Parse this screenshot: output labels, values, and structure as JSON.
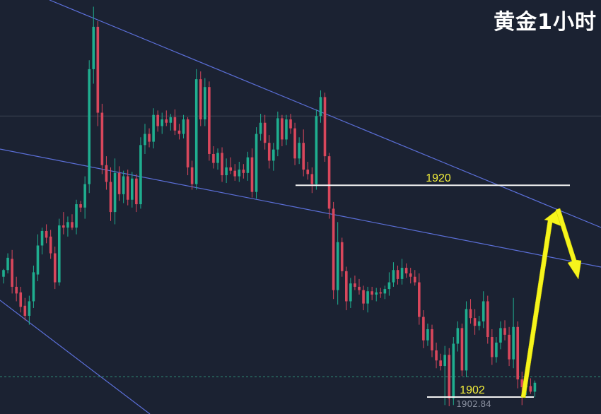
{
  "title": "黄金1小时",
  "colors": {
    "background": "#1b2232",
    "bull": "#1fae8f",
    "bear": "#d9475c",
    "trendline": "#5b6fd8",
    "level_line": "#f2f2f2",
    "level_label": "#f4ef3a",
    "arrow": "#f6f41c",
    "title": "#ffffff",
    "price_line": "#2f8f78",
    "price_label": "#8a90a0",
    "hline": "#3a4150"
  },
  "chart_data": {
    "type": "candlestick",
    "title": "黄金1小时",
    "y_min": 1899.5,
    "y_max": 1936.6,
    "candles": [
      [
        1911.8,
        1912.5,
        1911.2,
        1912.4
      ],
      [
        1912.4,
        1913.9,
        1912.1,
        1913.5
      ],
      [
        1913.4,
        1914.2,
        1910.3,
        1910.9
      ],
      [
        1910.9,
        1911.8,
        1909.6,
        1910.3
      ],
      [
        1910.4,
        1910.9,
        1908.6,
        1909.1
      ],
      [
        1909.2,
        1909.9,
        1907.9,
        1908.3
      ],
      [
        1908.3,
        1910.1,
        1907.5,
        1909.6
      ],
      [
        1909.6,
        1912.8,
        1909.0,
        1912.2
      ],
      [
        1912.0,
        1915.6,
        1911.4,
        1914.6
      ],
      [
        1914.6,
        1916.2,
        1913.8,
        1915.9
      ],
      [
        1915.9,
        1916.5,
        1914.8,
        1915.3
      ],
      [
        1915.4,
        1916.0,
        1913.4,
        1913.9
      ],
      [
        1913.9,
        1914.5,
        1910.7,
        1911.3
      ],
      [
        1911.3,
        1917.0,
        1911.0,
        1916.4
      ],
      [
        1916.4,
        1917.6,
        1915.6,
        1916.2
      ],
      [
        1916.2,
        1917.2,
        1915.4,
        1916.7
      ],
      [
        1916.7,
        1917.4,
        1916.0,
        1916.2
      ],
      [
        1916.2,
        1918.7,
        1915.6,
        1918.3
      ],
      [
        1918.3,
        1918.6,
        1917.6,
        1918.0
      ],
      [
        1918.0,
        1920.8,
        1917.0,
        1920.1
      ],
      [
        1920.1,
        1931.2,
        1919.3,
        1930.4
      ],
      [
        1930.4,
        1936.0,
        1929.1,
        1934.2
      ],
      [
        1934.2,
        1934.7,
        1925.3,
        1926.5
      ],
      [
        1926.5,
        1927.3,
        1921.0,
        1921.8
      ],
      [
        1921.8,
        1922.6,
        1919.6,
        1920.3
      ],
      [
        1920.3,
        1921.6,
        1916.8,
        1917.6
      ],
      [
        1917.6,
        1922.4,
        1916.5,
        1921.1
      ],
      [
        1921.1,
        1921.7,
        1918.6,
        1919.2
      ],
      [
        1919.2,
        1921.3,
        1918.4,
        1920.8
      ],
      [
        1920.8,
        1921.4,
        1918.2,
        1918.7
      ],
      [
        1918.7,
        1921.2,
        1918.0,
        1920.6
      ],
      [
        1920.6,
        1921.0,
        1917.6,
        1918.3
      ],
      [
        1918.3,
        1924.3,
        1917.9,
        1923.6
      ],
      [
        1923.6,
        1925.5,
        1922.8,
        1924.6
      ],
      [
        1924.6,
        1925.1,
        1923.4,
        1923.9
      ],
      [
        1923.9,
        1926.9,
        1923.3,
        1926.3
      ],
      [
        1926.3,
        1926.7,
        1924.8,
        1925.3
      ],
      [
        1925.3,
        1926.5,
        1924.6,
        1925.9
      ],
      [
        1925.9,
        1926.7,
        1925.3,
        1925.6
      ],
      [
        1925.6,
        1926.4,
        1924.9,
        1926.1
      ],
      [
        1926.1,
        1926.8,
        1924.5,
        1924.9
      ],
      [
        1924.9,
        1925.5,
        1924.1,
        1924.6
      ],
      [
        1924.6,
        1926.3,
        1924.2,
        1925.9
      ],
      [
        1925.9,
        1926.1,
        1920.9,
        1921.6
      ],
      [
        1921.6,
        1922.2,
        1919.6,
        1920.1
      ],
      [
        1920.1,
        1930.4,
        1919.6,
        1929.5
      ],
      [
        1929.5,
        1930.2,
        1925.3,
        1925.9
      ],
      [
        1925.9,
        1929.6,
        1925.3,
        1928.8
      ],
      [
        1928.8,
        1929.3,
        1922.2,
        1922.8
      ],
      [
        1922.8,
        1923.5,
        1921.5,
        1922.0
      ],
      [
        1922.0,
        1923.3,
        1921.4,
        1922.9
      ],
      [
        1922.9,
        1923.4,
        1920.3,
        1920.9
      ],
      [
        1920.9,
        1922.4,
        1920.2,
        1921.6
      ],
      [
        1921.6,
        1922.5,
        1921.0,
        1921.3
      ],
      [
        1921.3,
        1921.9,
        1920.4,
        1920.8
      ],
      [
        1920.8,
        1922.1,
        1920.3,
        1921.4
      ],
      [
        1921.4,
        1921.9,
        1920.6,
        1921.1
      ],
      [
        1921.1,
        1923.0,
        1920.4,
        1922.5
      ],
      [
        1922.5,
        1923.3,
        1918.9,
        1919.4
      ],
      [
        1919.4,
        1925.2,
        1918.8,
        1924.6
      ],
      [
        1924.6,
        1926.4,
        1924.0,
        1925.6
      ],
      [
        1925.6,
        1926.3,
        1923.2,
        1923.8
      ],
      [
        1923.8,
        1924.5,
        1921.5,
        1922.2
      ],
      [
        1922.2,
        1923.8,
        1921.3,
        1923.2
      ],
      [
        1923.2,
        1926.6,
        1922.6,
        1926.0
      ],
      [
        1926.0,
        1926.3,
        1923.5,
        1924.1
      ],
      [
        1924.1,
        1926.3,
        1923.6,
        1925.9
      ],
      [
        1925.9,
        1926.4,
        1924.6,
        1925.1
      ],
      [
        1925.1,
        1925.6,
        1921.8,
        1922.4
      ],
      [
        1922.4,
        1924.3,
        1921.9,
        1923.8
      ],
      [
        1923.8,
        1925.0,
        1920.8,
        1921.4
      ],
      [
        1921.4,
        1922.1,
        1920.5,
        1921.0
      ],
      [
        1921.0,
        1921.6,
        1919.3,
        1920.1
      ],
      [
        1920.1,
        1926.8,
        1919.6,
        1926.2
      ],
      [
        1926.2,
        1928.5,
        1925.6,
        1927.9
      ],
      [
        1927.9,
        1928.3,
        1922.1,
        1922.6
      ],
      [
        1922.6,
        1922.9,
        1917.0,
        1917.9
      ],
      [
        1917.9,
        1918.5,
        1909.8,
        1910.6
      ],
      [
        1910.6,
        1916.7,
        1909.3,
        1914.9
      ],
      [
        1914.9,
        1915.3,
        1911.8,
        1912.3
      ],
      [
        1912.3,
        1912.7,
        1908.8,
        1909.6
      ],
      [
        1909.6,
        1911.7,
        1909.0,
        1911.2
      ],
      [
        1911.2,
        1911.9,
        1910.6,
        1910.9
      ],
      [
        1910.9,
        1911.6,
        1910.2,
        1910.6
      ],
      [
        1910.6,
        1911.0,
        1908.8,
        1909.4
      ],
      [
        1909.4,
        1910.9,
        1908.6,
        1910.5
      ],
      [
        1910.5,
        1910.9,
        1909.7,
        1910.2
      ],
      [
        1910.2,
        1910.8,
        1909.6,
        1910.4
      ],
      [
        1910.4,
        1910.8,
        1909.9,
        1910.3
      ],
      [
        1910.3,
        1911.0,
        1909.8,
        1910.7
      ],
      [
        1910.7,
        1912.2,
        1910.1,
        1911.3
      ],
      [
        1911.3,
        1913.1,
        1910.9,
        1912.4
      ],
      [
        1912.4,
        1912.8,
        1911.1,
        1911.6
      ],
      [
        1911.6,
        1913.4,
        1911.1,
        1912.6
      ],
      [
        1912.6,
        1913.0,
        1911.7,
        1912.1
      ],
      [
        1912.1,
        1912.6,
        1911.2,
        1911.8
      ],
      [
        1911.8,
        1912.4,
        1911.0,
        1911.3
      ],
      [
        1911.3,
        1912.1,
        1907.5,
        1908.2
      ],
      [
        1908.2,
        1908.8,
        1905.4,
        1906.1
      ],
      [
        1906.1,
        1907.6,
        1905.6,
        1907.1
      ],
      [
        1907.1,
        1907.5,
        1904.6,
        1905.2
      ],
      [
        1905.2,
        1905.9,
        1903.6,
        1904.3
      ],
      [
        1904.3,
        1904.9,
        1903.4,
        1903.8
      ],
      [
        1903.8,
        1905.6,
        1900.3,
        1904.8
      ],
      [
        1904.8,
        1905.4,
        1900.2,
        1900.9
      ],
      [
        1900.9,
        1906.4,
        1900.3,
        1905.8
      ],
      [
        1905.8,
        1907.8,
        1905.1,
        1907.2
      ],
      [
        1907.2,
        1907.6,
        1902.9,
        1903.4
      ],
      [
        1903.4,
        1909.6,
        1902.8,
        1908.9
      ],
      [
        1908.9,
        1909.8,
        1907.6,
        1908.1
      ],
      [
        1908.1,
        1908.9,
        1906.6,
        1907.4
      ],
      [
        1907.4,
        1908.3,
        1907.0,
        1907.8
      ],
      [
        1907.8,
        1910.5,
        1907.2,
        1909.6
      ],
      [
        1909.6,
        1910.1,
        1905.8,
        1906.4
      ],
      [
        1906.4,
        1907.1,
        1903.9,
        1904.6
      ],
      [
        1904.6,
        1906.4,
        1904.1,
        1905.9
      ],
      [
        1905.9,
        1907.8,
        1905.3,
        1907.2
      ],
      [
        1907.2,
        1907.9,
        1906.1,
        1906.6
      ],
      [
        1906.6,
        1907.3,
        1903.8,
        1904.4
      ],
      [
        1904.4,
        1909.9,
        1903.6,
        1907.3
      ],
      [
        1907.3,
        1907.8,
        1901.8,
        1902.6
      ],
      [
        1902.6,
        1903.3,
        1900.3,
        1901.9
      ],
      [
        1901.9,
        1902.6,
        1901.2,
        1902.0
      ],
      [
        1902.0,
        1902.7,
        1901.3,
        1901.5
      ],
      [
        1901.5,
        1902.5,
        1901.0,
        1902.3
      ]
    ],
    "levels": [
      {
        "label": "1920",
        "value": 1920.0
      },
      {
        "label": "1902",
        "value": 1902.0
      }
    ],
    "reference_line": 1926.2,
    "last_price": 1902.84,
    "last_price_label": "1902.84"
  }
}
